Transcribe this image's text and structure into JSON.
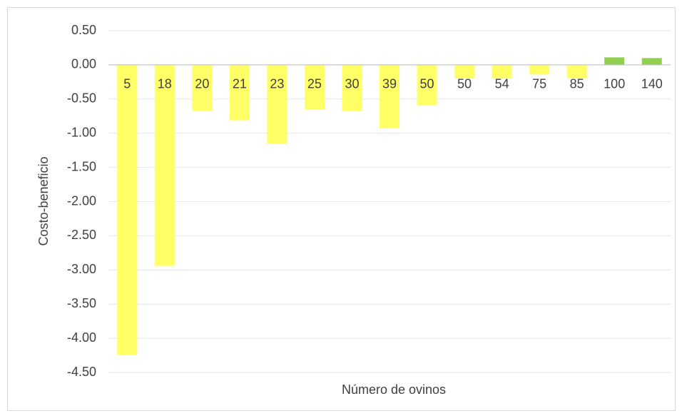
{
  "chart_data": {
    "type": "bar",
    "x_label": "Número de ovinos",
    "y_label": "Costo-beneficio",
    "categories": [
      "5",
      "18",
      "20",
      "21",
      "23",
      "25",
      "30",
      "39",
      "50",
      "50",
      "54",
      "75",
      "85",
      "100",
      "140"
    ],
    "values": [
      -4.24,
      -2.94,
      -0.68,
      -0.81,
      -1.15,
      -0.65,
      -0.68,
      -0.93,
      -0.59,
      -0.2,
      -0.2,
      -0.14,
      -0.2,
      0.11,
      0.1
    ],
    "colors": [
      "#ffff66",
      "#ffff66",
      "#ffff66",
      "#ffff66",
      "#ffff66",
      "#ffff66",
      "#ffff66",
      "#ffff66",
      "#ffff66",
      "#ffff66",
      "#ffff66",
      "#ffff66",
      "#ffff66",
      "#92d050",
      "#92d050"
    ],
    "ylim": [
      -4.5,
      0.5
    ],
    "yticks": [
      {
        "value": -4.5,
        "label": "-4.50"
      },
      {
        "value": -4,
        "label": "-4.00"
      },
      {
        "value": -3.5,
        "label": "-3.50"
      },
      {
        "value": -3,
        "label": "-3.00"
      },
      {
        "value": -2.5,
        "label": "-2.50"
      },
      {
        "value": -2,
        "label": "-2.00"
      },
      {
        "value": -1.5,
        "label": "-1.50"
      },
      {
        "value": -1,
        "label": "-1.00"
      },
      {
        "value": -0.5,
        "label": "-0.50"
      },
      {
        "value": 0,
        "label": "0.00"
      },
      {
        "value": 0.5,
        "label": "0.50"
      }
    ],
    "grid": true
  }
}
